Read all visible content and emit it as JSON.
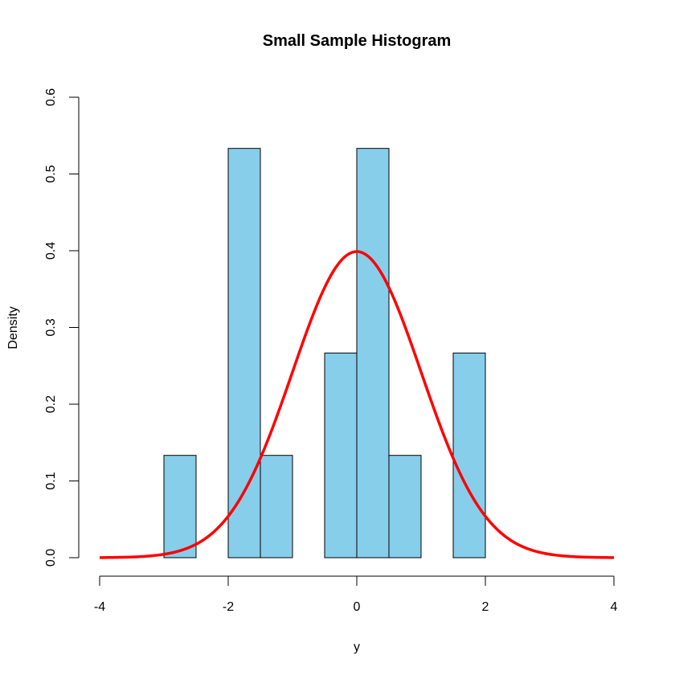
{
  "chart_data": {
    "type": "bar",
    "title": "Small Sample Histogram",
    "xlabel": "y",
    "ylabel": "Density",
    "xlim": [
      -4,
      4
    ],
    "ylim": [
      0,
      0.6
    ],
    "x_ticks": [
      "-4",
      "-2",
      "0",
      "2",
      "4"
    ],
    "y_ticks": [
      "0.0",
      "0.1",
      "0.2",
      "0.3",
      "0.4",
      "0.5",
      "0.6"
    ],
    "grid": false,
    "bins": [
      {
        "from": -3.0,
        "to": -2.5,
        "density": 0.1333
      },
      {
        "from": -2.0,
        "to": -1.5,
        "density": 0.5333
      },
      {
        "from": -1.5,
        "to": -1.0,
        "density": 0.1333
      },
      {
        "from": -0.5,
        "to": 0.0,
        "density": 0.2667
      },
      {
        "from": 0.0,
        "to": 0.5,
        "density": 0.5333
      },
      {
        "from": 0.5,
        "to": 1.0,
        "density": 0.1333
      },
      {
        "from": 1.5,
        "to": 2.0,
        "density": 0.2667
      }
    ],
    "bar_color": "#87ceeb",
    "overlay_curve": {
      "type": "normal density",
      "mean": 0,
      "sd": 1,
      "x_range": [
        -4,
        4
      ],
      "color": "#ff0000"
    }
  }
}
